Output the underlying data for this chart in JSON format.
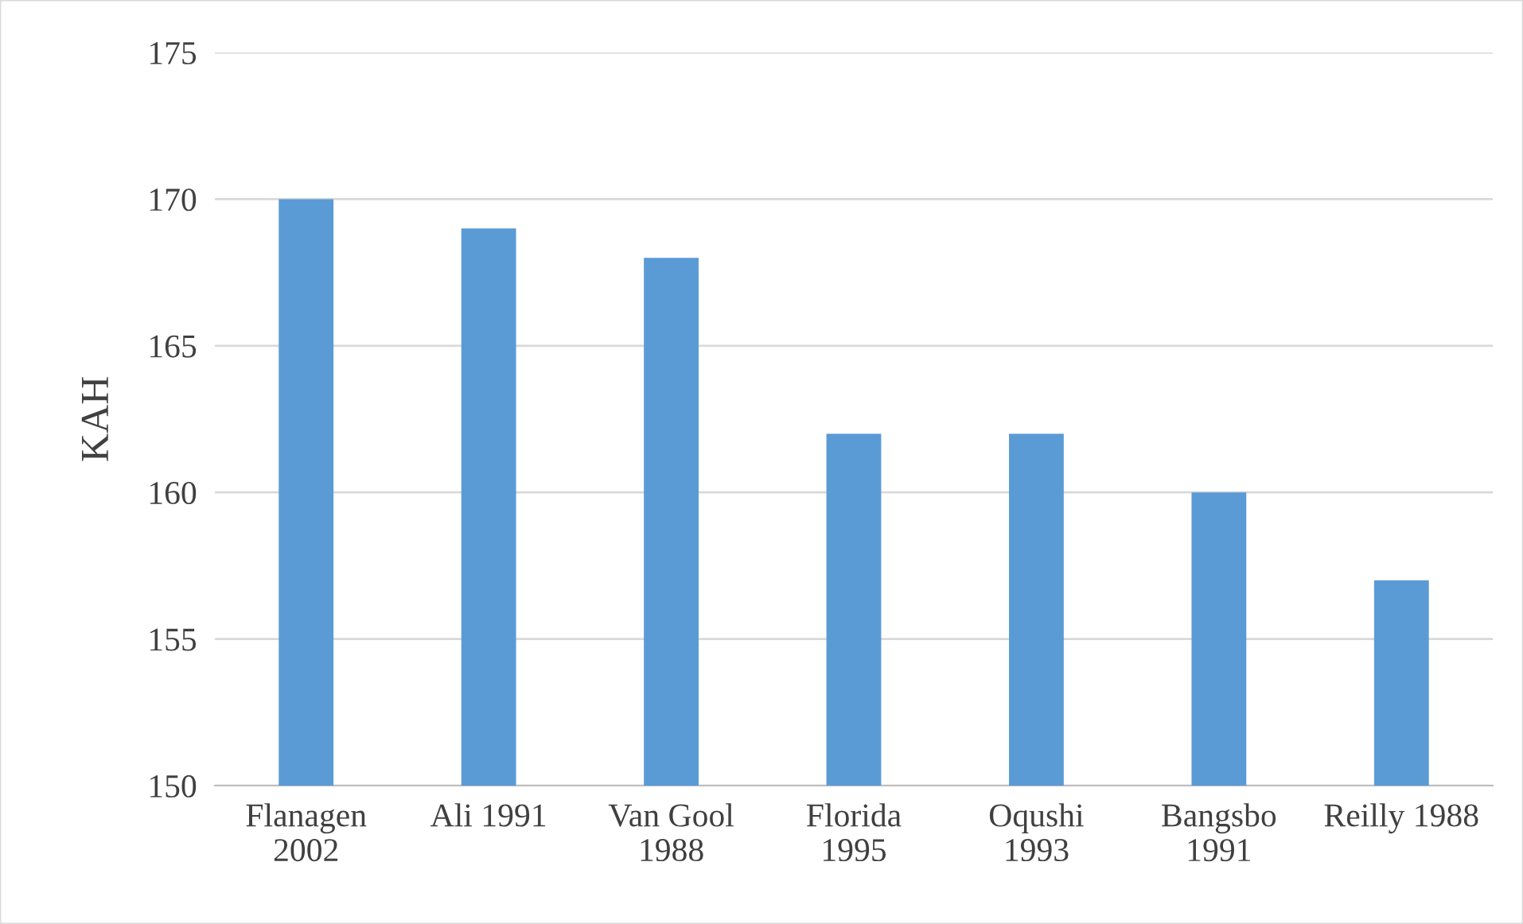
{
  "chart_data": {
    "type": "bar",
    "ylabel": "KAH",
    "categories": [
      "Flanagen\n2002",
      "Ali 1991",
      "Van Gool\n1988",
      "Florida\n1995",
      "Oqushi\n1993",
      "Bangsbo\n1991",
      "Reilly 1988"
    ],
    "values": [
      170,
      169,
      168,
      162,
      162,
      160,
      157
    ],
    "color": "#5b9bd5",
    "ylim": [
      150,
      175
    ],
    "yticks": [
      150,
      155,
      160,
      165,
      170,
      175
    ],
    "grid": "y"
  }
}
